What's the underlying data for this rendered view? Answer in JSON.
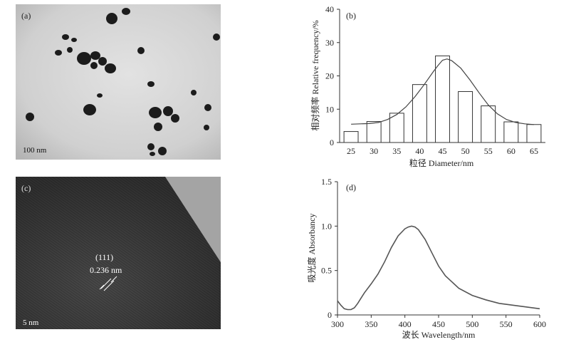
{
  "panels": {
    "a": {
      "label": "(a)",
      "scale_bar": "100 nm"
    },
    "c": {
      "label": "(c)",
      "scale_bar": "5 nm",
      "plane": "(111)",
      "spacing": "0.236 nm"
    }
  },
  "chart_data": [
    {
      "panel_label": "(b)",
      "type": "bar",
      "categories": [
        "25",
        "30",
        "35",
        "40",
        "45",
        "50",
        "55",
        "60",
        "65"
      ],
      "values": [
        3.3,
        6.3,
        8.8,
        17.4,
        26.0,
        15.3,
        11.0,
        6.2,
        5.4
      ],
      "fit_curve": {
        "type": "line",
        "x": [
          25,
          27,
          29,
          31,
          33,
          35,
          37,
          39,
          41,
          43,
          44,
          45,
          46,
          47,
          49,
          51,
          53,
          55,
          57,
          59,
          61,
          63,
          65
        ],
        "y": [
          5.5,
          5.6,
          5.7,
          6.0,
          6.9,
          8.4,
          10.7,
          13.8,
          17.4,
          21.3,
          23.1,
          24.7,
          25.1,
          24.6,
          22.3,
          18.8,
          14.9,
          11.3,
          8.6,
          6.9,
          6.0,
          5.6,
          5.4
        ]
      },
      "xlabel": "粒径 Diameter/nm",
      "ylabel": "相对频率 Relative frequency/%",
      "ylim": [
        0,
        40
      ],
      "yticks": [
        "0",
        "10",
        "20",
        "30",
        "40"
      ],
      "grid": false
    },
    {
      "panel_label": "(d)",
      "type": "line",
      "x": [
        300,
        305,
        310,
        315,
        320,
        325,
        330,
        335,
        340,
        350,
        360,
        370,
        380,
        390,
        400,
        405,
        410,
        415,
        420,
        430,
        440,
        450,
        460,
        480,
        500,
        520,
        540,
        560,
        580,
        600
      ],
      "y": [
        0.16,
        0.11,
        0.07,
        0.06,
        0.06,
        0.08,
        0.13,
        0.19,
        0.25,
        0.35,
        0.46,
        0.6,
        0.76,
        0.89,
        0.97,
        0.99,
        1.0,
        0.99,
        0.96,
        0.85,
        0.7,
        0.55,
        0.44,
        0.3,
        0.22,
        0.17,
        0.13,
        0.11,
        0.09,
        0.07
      ],
      "xlabel": "波长 Wavelength/nm",
      "ylabel": "吸光度 Absorbancy",
      "xlim": [
        300,
        600
      ],
      "ylim": [
        0,
        1.5
      ],
      "xticks": [
        "300",
        "350",
        "400",
        "450",
        "500",
        "550",
        "600"
      ],
      "yticks": [
        "0",
        "0.5",
        "1.0",
        "1.5"
      ],
      "grid": false
    }
  ]
}
